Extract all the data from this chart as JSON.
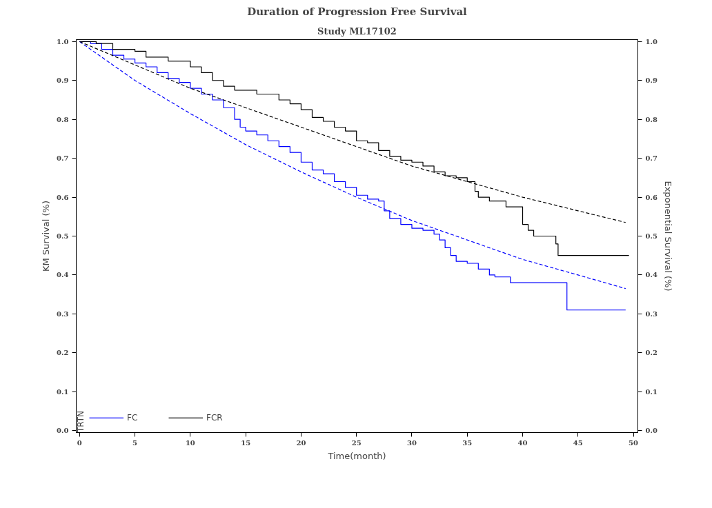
{
  "chart_data": {
    "type": "step",
    "title": "Duration of Progression Free Survival",
    "subtitle": "Study ML17102",
    "xlabel": "Time(month)",
    "ylabel": "KM Survival (%)",
    "y2label": "Exponential Survival (%)",
    "legend_title": "TRTN",
    "xlim": [
      -0.3,
      50.4
    ],
    "xticks": [
      0,
      5,
      10,
      15,
      20,
      25,
      30,
      35,
      40,
      45,
      50
    ],
    "ylim": [
      -0.005,
      1.005
    ],
    "yticks": [
      {
        "value": 0,
        "label": "0.0"
      },
      0.1,
      0.2,
      0.3,
      0.4,
      0.5,
      0.6,
      0.7,
      0.8,
      0.9,
      {
        "value": 1,
        "label": "1.0"
      }
    ],
    "y2lim": [
      -0.005,
      1.005
    ],
    "y2ticks": [
      {
        "value": 0,
        "label": "0.0"
      },
      0.1,
      0.2,
      0.3,
      0.4,
      0.5,
      0.6,
      0.7,
      0.8,
      0.9,
      {
        "value": 1,
        "label": "1.0"
      }
    ],
    "grid": false,
    "legend": "bottom left",
    "line_style": "solid",
    "series": [
      {
        "name": "FC",
        "color": "#0000ff",
        "x": [
          0,
          1,
          2,
          3,
          4,
          5,
          6,
          7,
          8,
          9,
          10,
          11,
          12,
          13,
          14,
          14.5,
          15,
          16,
          17,
          18,
          19,
          20,
          21,
          22,
          23,
          24,
          25,
          26,
          27,
          27.5,
          28,
          29,
          30,
          31,
          32,
          32.5,
          33,
          33.5,
          34,
          35,
          36,
          37,
          37.5,
          38.9,
          44.0,
          49.3
        ],
        "values": [
          1.0,
          0.995,
          0.98,
          0.965,
          0.955,
          0.945,
          0.935,
          0.92,
          0.905,
          0.895,
          0.88,
          0.865,
          0.85,
          0.83,
          0.8,
          0.78,
          0.77,
          0.76,
          0.745,
          0.73,
          0.715,
          0.69,
          0.67,
          0.66,
          0.64,
          0.625,
          0.605,
          0.595,
          0.59,
          0.565,
          0.545,
          0.53,
          0.52,
          0.515,
          0.505,
          0.49,
          0.47,
          0.45,
          0.435,
          0.43,
          0.415,
          0.4,
          0.395,
          0.38,
          0.31,
          0.31
        ]
      },
      {
        "name": "FCR",
        "color": "#000000",
        "x": [
          0,
          1.5,
          3,
          5,
          6,
          8,
          10,
          11,
          12,
          13,
          14,
          16,
          18,
          19,
          20,
          21,
          22,
          23,
          24,
          25,
          26,
          27,
          28,
          29,
          30,
          31,
          32,
          33,
          34,
          35,
          35.7,
          36,
          37,
          38.5,
          40,
          40.5,
          41,
          43,
          43.2,
          49.6
        ],
        "values": [
          1.0,
          0.995,
          0.98,
          0.975,
          0.96,
          0.95,
          0.935,
          0.92,
          0.9,
          0.885,
          0.875,
          0.865,
          0.85,
          0.84,
          0.825,
          0.805,
          0.795,
          0.78,
          0.77,
          0.745,
          0.74,
          0.72,
          0.705,
          0.695,
          0.69,
          0.68,
          0.665,
          0.655,
          0.65,
          0.64,
          0.615,
          0.6,
          0.59,
          0.575,
          0.53,
          0.515,
          0.5,
          0.48,
          0.45,
          0.45
        ]
      },
      {
        "type": "line",
        "line_style": "dashed",
        "color": "#0000ff",
        "x": [
          0,
          5,
          10,
          15,
          20,
          25,
          30,
          35,
          40,
          45,
          49.3
        ],
        "values": [
          1.0,
          0.9,
          0.815,
          0.735,
          0.665,
          0.6,
          0.54,
          0.49,
          0.44,
          0.4,
          0.365
        ]
      },
      {
        "type": "line",
        "line_style": "dashed",
        "color": "#000000",
        "x": [
          0,
          5,
          10,
          15,
          20,
          25,
          30,
          35,
          40,
          45,
          49.3
        ],
        "values": [
          1.0,
          0.94,
          0.88,
          0.83,
          0.78,
          0.73,
          0.68,
          0.64,
          0.6,
          0.565,
          0.535
        ]
      }
    ]
  }
}
